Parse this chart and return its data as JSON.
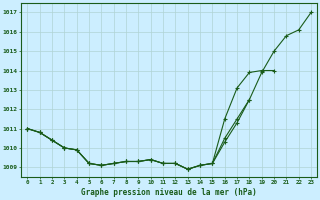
{
  "bg_color": "#cceeff",
  "line_color": "#1a5c1a",
  "grid_color": "#b0d4d4",
  "xlabel": "Graphe pression niveau de la mer (hPa)",
  "hours": [
    0,
    1,
    2,
    3,
    4,
    5,
    6,
    7,
    8,
    9,
    10,
    11,
    12,
    13,
    14,
    15,
    16,
    17,
    18,
    19,
    20,
    21,
    22,
    23
  ],
  "series1": [
    1011.0,
    1010.8,
    1010.4,
    1010.0,
    1009.9,
    1009.2,
    1009.1,
    1009.2,
    1009.3,
    1009.3,
    1009.4,
    1009.2,
    1009.2,
    1008.9,
    1009.1,
    1009.2,
    1010.3,
    1011.3,
    1012.5,
    1013.9,
    1015.0,
    1015.8,
    1016.1,
    1017.0
  ],
  "series2_x": [
    0,
    1,
    2,
    3,
    4,
    5,
    6,
    7,
    8,
    9,
    10,
    11,
    12,
    13,
    14,
    15,
    16,
    17,
    18,
    19,
    20
  ],
  "series2_y": [
    1011.0,
    1010.8,
    1010.4,
    1010.0,
    1009.9,
    1009.2,
    1009.1,
    1009.2,
    1009.3,
    1009.3,
    1009.4,
    1009.2,
    1009.2,
    1008.9,
    1009.1,
    1009.2,
    1011.5,
    1013.1,
    1013.9,
    1014.0,
    1014.0
  ],
  "series3_x": [
    0,
    1,
    2,
    3,
    4,
    5,
    6,
    7,
    8,
    9,
    10,
    11,
    12,
    13,
    14,
    15,
    16,
    17,
    18
  ],
  "series3_y": [
    1011.0,
    1010.8,
    1010.4,
    1010.0,
    1009.9,
    1009.2,
    1009.1,
    1009.2,
    1009.3,
    1009.3,
    1009.4,
    1009.2,
    1009.2,
    1008.9,
    1009.1,
    1009.2,
    1010.5,
    1011.5,
    1012.5
  ],
  "ylim_min": 1008.5,
  "ylim_max": 1017.5,
  "yticks": [
    1009,
    1010,
    1011,
    1012,
    1013,
    1014,
    1015,
    1016,
    1017
  ],
  "figsize": [
    3.2,
    2.0
  ],
  "dpi": 100
}
